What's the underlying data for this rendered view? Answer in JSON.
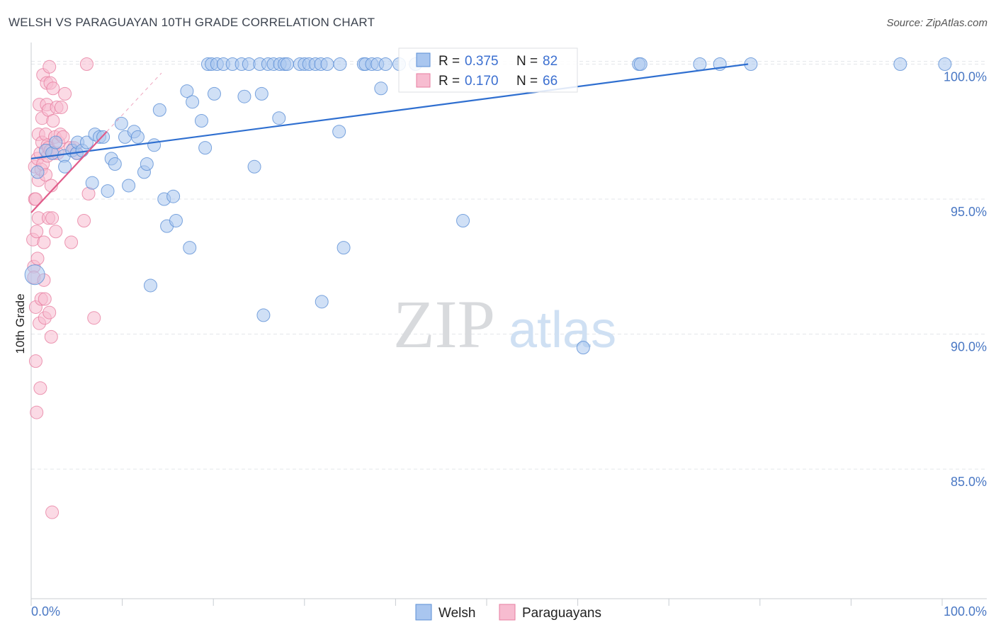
{
  "header": {
    "title": "WELSH VS PARAGUAYAN 10TH GRADE CORRELATION CHART",
    "source": "Source: ZipAtlas.com"
  },
  "watermark": {
    "zip": "ZIP",
    "atlas": "atlas"
  },
  "colors": {
    "welsh_fill": "#a9c6ef",
    "welsh_stroke": "#5b8fd6",
    "welsh_line": "#2f6fd0",
    "para_fill": "#f7bcd0",
    "para_stroke": "#e77ea0",
    "para_line": "#e05c8a",
    "axis_text": "#4a78c4",
    "grid": "#e3e6ea"
  },
  "chart_data": {
    "type": "scatter",
    "title": "WELSH VS PARAGUAYAN 10TH GRADE CORRELATION CHART",
    "xlabel": "",
    "ylabel": "10th Grade",
    "xlim": [
      0,
      100
    ],
    "ylim": [
      80.2,
      100.8
    ],
    "x_tick_labels": [
      "0.0%",
      "100.0%"
    ],
    "y_ticks": [
      85,
      90,
      95,
      100
    ],
    "y_tick_labels": [
      "85.0%",
      "90.0%",
      "95.0%",
      "100.0%"
    ],
    "legend": {
      "placement": "top-center",
      "entries": [
        {
          "r_label": "R =",
          "r_value": "0.375",
          "n_label": "N =",
          "n_value": "82"
        },
        {
          "r_label": "R =",
          "r_value": "0.170",
          "n_label": "N =",
          "n_value": "66"
        }
      ]
    },
    "series": [
      {
        "name": "Welsh",
        "R": 0.375,
        "N": 82,
        "trend": {
          "x": [
            0,
            78.7
          ],
          "y": [
            96.5,
            100.0
          ]
        },
        "points": [
          [
            0.4,
            92.2
          ],
          [
            0.7,
            96.0
          ],
          [
            1.6,
            96.8
          ],
          [
            2.3,
            96.7
          ],
          [
            2.7,
            97.1
          ],
          [
            3.6,
            96.6
          ],
          [
            3.7,
            96.2
          ],
          [
            4.5,
            96.8
          ],
          [
            5.0,
            96.7
          ],
          [
            5.1,
            97.1
          ],
          [
            5.6,
            96.8
          ],
          [
            6.1,
            97.1
          ],
          [
            6.7,
            95.6
          ],
          [
            7.0,
            97.4
          ],
          [
            7.5,
            97.3
          ],
          [
            7.9,
            97.3
          ],
          [
            8.4,
            95.3
          ],
          [
            8.8,
            96.5
          ],
          [
            9.2,
            96.3
          ],
          [
            9.9,
            97.8
          ],
          [
            10.3,
            97.3
          ],
          [
            10.7,
            95.5
          ],
          [
            11.3,
            97.5
          ],
          [
            11.7,
            97.3
          ],
          [
            12.4,
            96.0
          ],
          [
            12.7,
            96.3
          ],
          [
            13.1,
            91.8
          ],
          [
            13.5,
            97.0
          ],
          [
            14.1,
            98.3
          ],
          [
            14.6,
            95.0
          ],
          [
            14.9,
            94.0
          ],
          [
            15.6,
            95.1
          ],
          [
            15.9,
            94.2
          ],
          [
            17.1,
            99.0
          ],
          [
            17.4,
            93.2
          ],
          [
            17.7,
            98.6
          ],
          [
            18.7,
            97.9
          ],
          [
            19.1,
            96.9
          ],
          [
            19.4,
            100.0
          ],
          [
            19.8,
            100.0
          ],
          [
            20.1,
            98.9
          ],
          [
            20.4,
            100.0
          ],
          [
            21.1,
            100.0
          ],
          [
            22.1,
            100.0
          ],
          [
            23.1,
            100.0
          ],
          [
            23.4,
            98.8
          ],
          [
            23.9,
            100.0
          ],
          [
            24.5,
            96.2
          ],
          [
            25.1,
            100.0
          ],
          [
            25.3,
            98.9
          ],
          [
            25.5,
            90.7
          ],
          [
            26.0,
            100.0
          ],
          [
            26.6,
            100.0
          ],
          [
            27.2,
            98.0
          ],
          [
            27.3,
            100.0
          ],
          [
            27.8,
            100.0
          ],
          [
            28.1,
            100.0
          ],
          [
            29.5,
            100.0
          ],
          [
            30.0,
            100.0
          ],
          [
            30.5,
            100.0
          ],
          [
            31.2,
            100.0
          ],
          [
            31.8,
            100.0
          ],
          [
            31.9,
            91.2
          ],
          [
            32.5,
            100.0
          ],
          [
            33.8,
            97.5
          ],
          [
            33.9,
            100.0
          ],
          [
            34.3,
            93.2
          ],
          [
            36.5,
            100.0
          ],
          [
            36.7,
            100.0
          ],
          [
            37.4,
            100.0
          ],
          [
            38.0,
            100.0
          ],
          [
            38.4,
            99.1
          ],
          [
            38.9,
            100.0
          ],
          [
            40.4,
            100.0
          ],
          [
            42.2,
            100.0
          ],
          [
            47.4,
            94.2
          ],
          [
            60.6,
            89.5
          ],
          [
            66.7,
            100.0
          ],
          [
            66.9,
            100.0
          ],
          [
            73.4,
            100.0
          ],
          [
            75.6,
            100.0
          ],
          [
            79.0,
            100.0
          ],
          [
            95.4,
            100.0
          ],
          [
            100.3,
            100.0
          ]
        ]
      },
      {
        "name": "Paraguayans",
        "R": 0.17,
        "N": 66,
        "trend": {
          "x": [
            0,
            8.3
          ],
          "y": [
            94.5,
            97.5
          ]
        },
        "points": [
          [
            0.2,
            93.5
          ],
          [
            0.3,
            92.5
          ],
          [
            0.3,
            92.1
          ],
          [
            0.4,
            96.2
          ],
          [
            0.4,
            95.0
          ],
          [
            0.5,
            91.0
          ],
          [
            0.5,
            89.0
          ],
          [
            0.6,
            87.1
          ],
          [
            0.6,
            93.8
          ],
          [
            0.7,
            92.8
          ],
          [
            0.7,
            96.5
          ],
          [
            0.8,
            94.3
          ],
          [
            0.8,
            97.4
          ],
          [
            0.8,
            95.7
          ],
          [
            0.9,
            90.4
          ],
          [
            0.9,
            98.5
          ],
          [
            1.0,
            88.0
          ],
          [
            1.0,
            96.7
          ],
          [
            1.1,
            91.3
          ],
          [
            1.1,
            96.1
          ],
          [
            1.2,
            97.1
          ],
          [
            1.2,
            98.0
          ],
          [
            1.3,
            99.6
          ],
          [
            1.3,
            96.3
          ],
          [
            1.4,
            92.0
          ],
          [
            1.4,
            93.4
          ],
          [
            1.5,
            91.3
          ],
          [
            1.5,
            90.6
          ],
          [
            1.6,
            97.4
          ],
          [
            1.6,
            95.9
          ],
          [
            1.7,
            98.5
          ],
          [
            1.7,
            99.3
          ],
          [
            1.8,
            96.6
          ],
          [
            1.8,
            97.0
          ],
          [
            1.9,
            98.3
          ],
          [
            1.9,
            96.9
          ],
          [
            1.9,
            94.3
          ],
          [
            2.0,
            99.9
          ],
          [
            2.0,
            90.8
          ],
          [
            2.1,
            99.3
          ],
          [
            2.1,
            96.8
          ],
          [
            2.2,
            95.5
          ],
          [
            2.2,
            89.9
          ],
          [
            2.3,
            94.3
          ],
          [
            2.3,
            83.4
          ],
          [
            2.4,
            97.9
          ],
          [
            2.4,
            99.1
          ],
          [
            2.5,
            96.7
          ],
          [
            2.6,
            97.3
          ],
          [
            2.7,
            93.8
          ],
          [
            2.8,
            98.4
          ],
          [
            2.9,
            96.7
          ],
          [
            3.0,
            97.1
          ],
          [
            3.2,
            97.4
          ],
          [
            3.3,
            98.4
          ],
          [
            3.5,
            97.3
          ],
          [
            3.7,
            98.9
          ],
          [
            4.3,
            96.9
          ],
          [
            4.4,
            93.4
          ],
          [
            4.7,
            96.9
          ],
          [
            5.0,
            96.7
          ],
          [
            5.8,
            94.2
          ],
          [
            6.1,
            100.0
          ],
          [
            6.3,
            95.2
          ],
          [
            6.9,
            90.6
          ],
          [
            0.5,
            95.0
          ]
        ]
      }
    ]
  },
  "bottom_legend": {
    "items": [
      "Welsh",
      "Paraguayans"
    ]
  }
}
